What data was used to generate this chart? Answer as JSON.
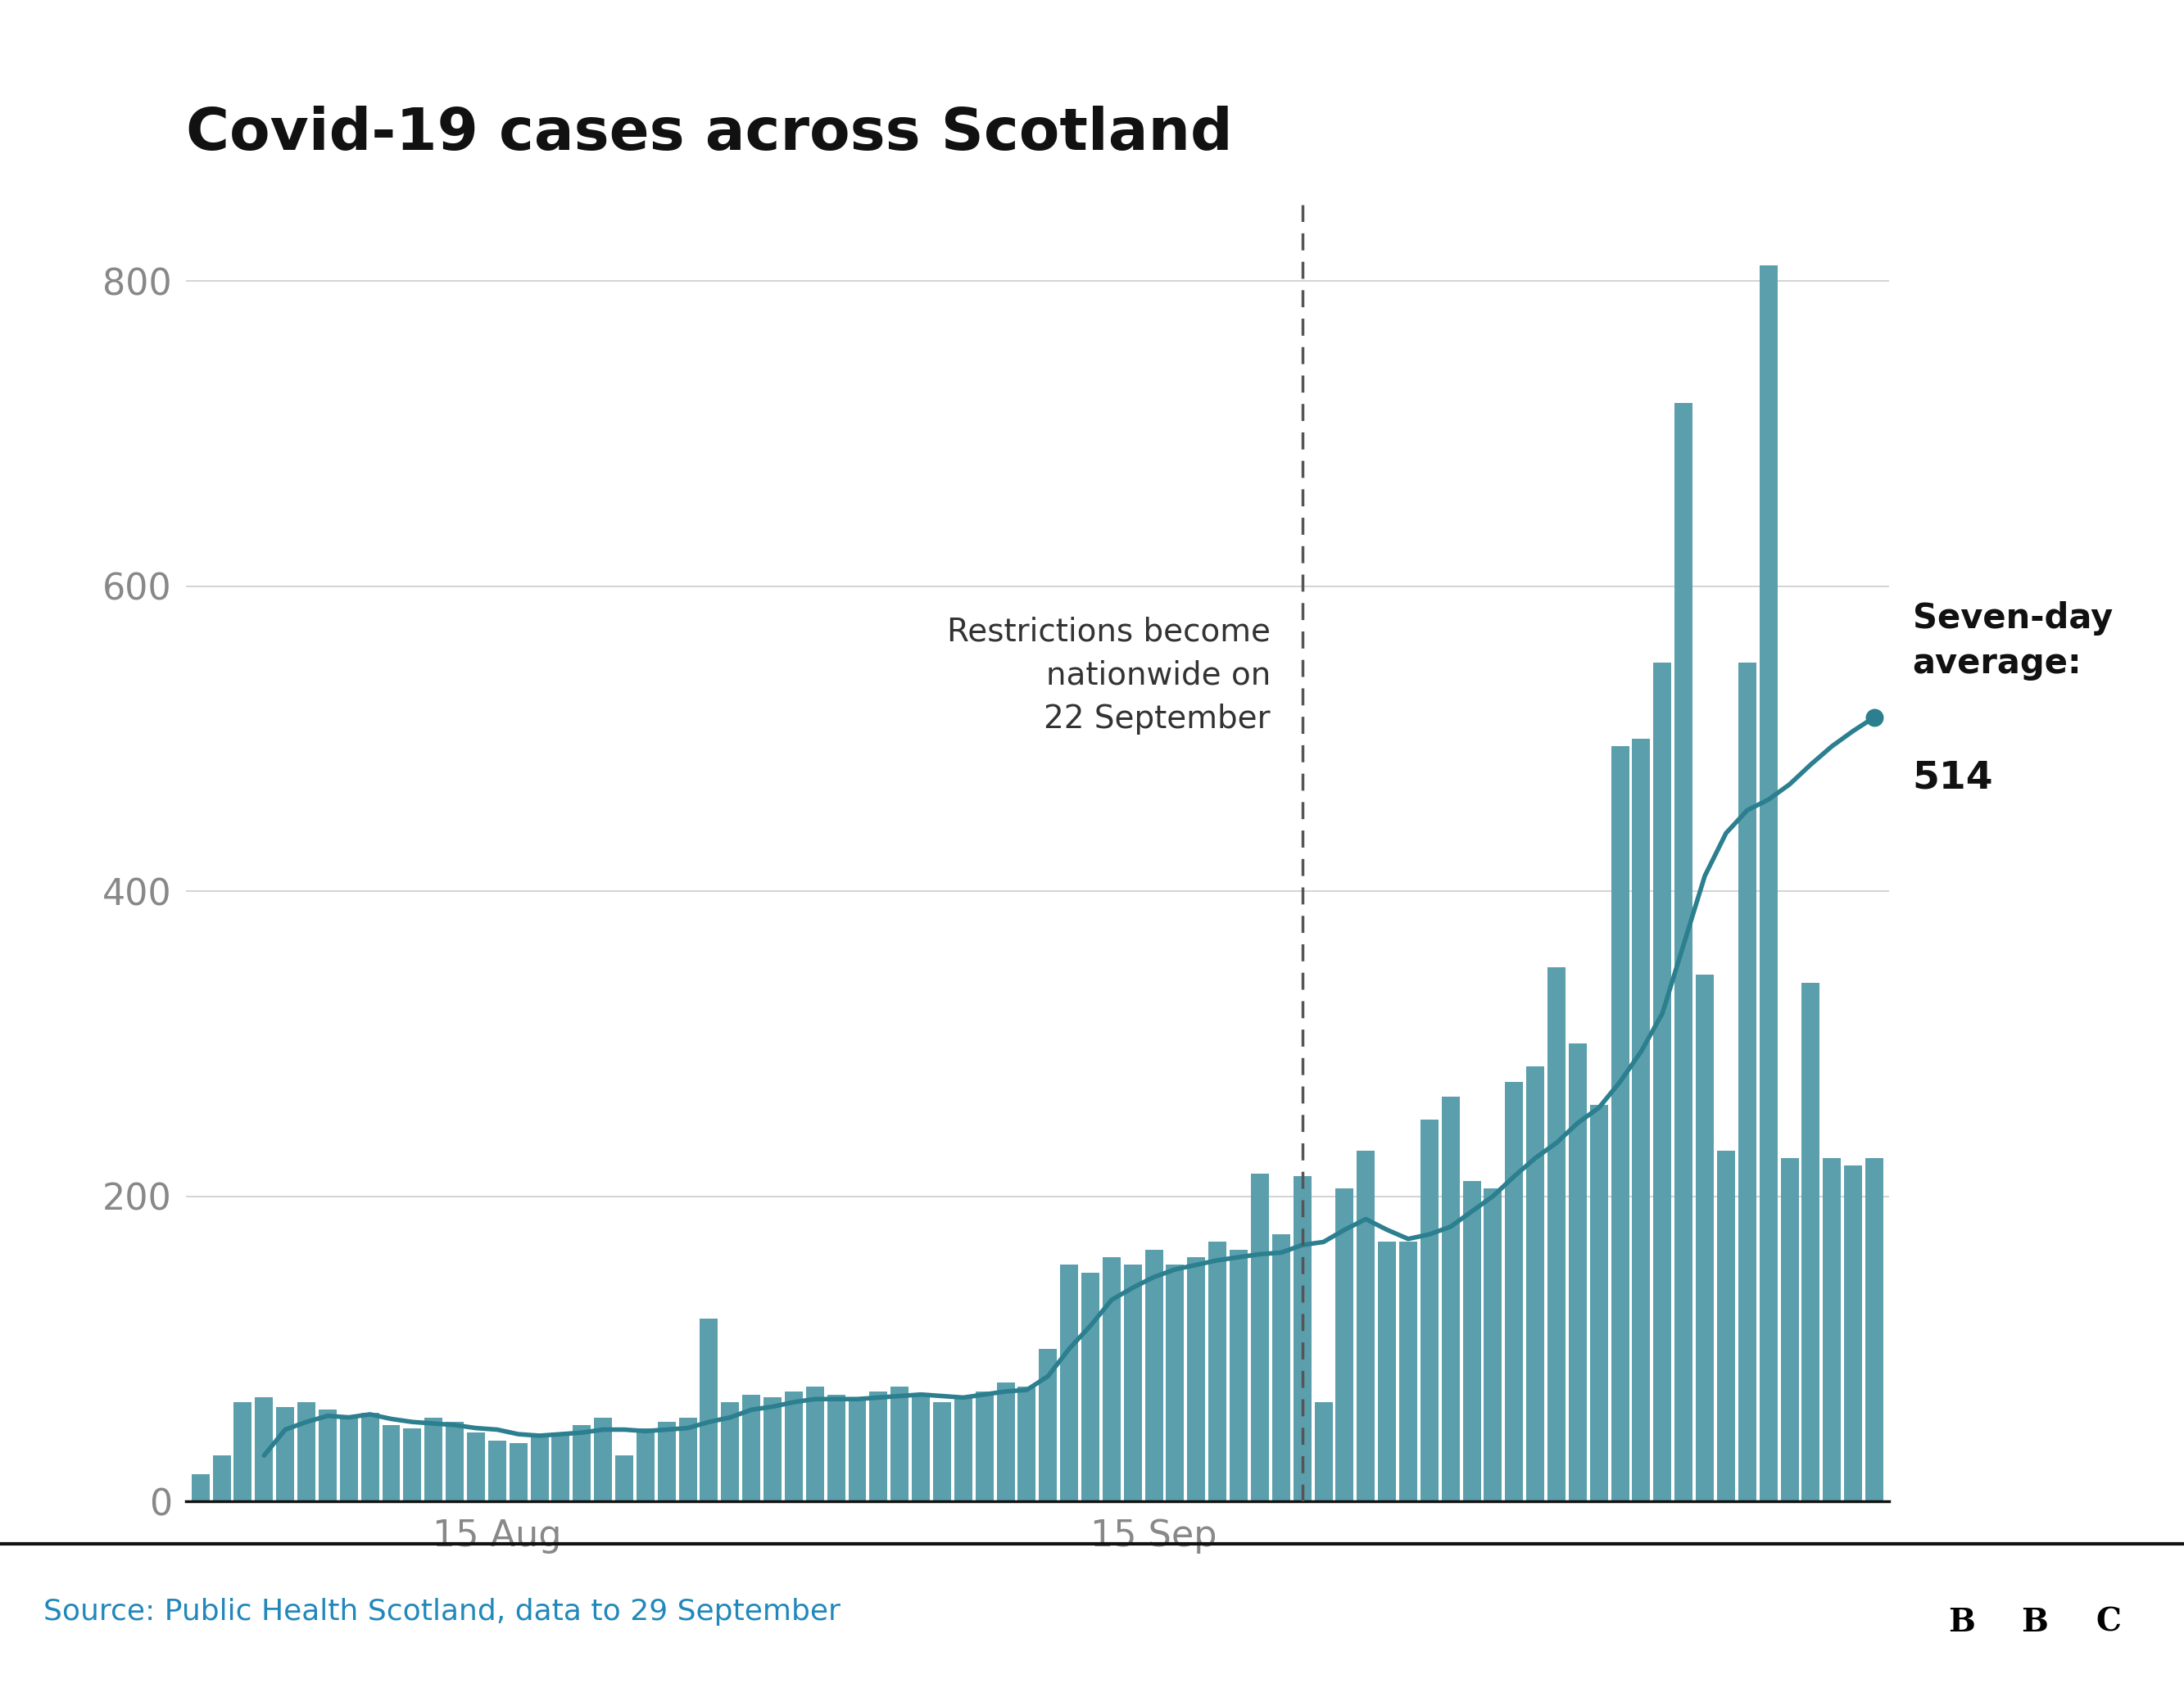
{
  "title": "Covid-19 cases across Scotland",
  "source_text": "Source: Public Health Scotland, data to 29 September",
  "annotation_text": "Restrictions become\nnationwide on\n22 September",
  "seven_day_label_bold": "Seven-day\naverage:",
  "seven_day_value": "514",
  "bar_color": "#5b9fad",
  "line_color": "#2b7f8f",
  "dot_color": "#2b7f8f",
  "dashed_line_color": "#555555",
  "background_color": "#ffffff",
  "grid_color": "#cccccc",
  "title_fontsize": 52,
  "source_fontsize": 26,
  "tick_fontsize": 32,
  "annotation_fontsize": 28,
  "seven_day_fontsize": 30,
  "ylim": [
    0,
    850
  ],
  "yticks": [
    0,
    200,
    400,
    600,
    800
  ],
  "restriction_date_index": 52,
  "daily_cases": [
    18,
    30,
    65,
    68,
    62,
    65,
    60,
    55,
    58,
    50,
    48,
    55,
    52,
    45,
    40,
    38,
    42,
    45,
    50,
    55,
    30,
    48,
    52,
    55,
    120,
    65,
    70,
    68,
    72,
    75,
    70,
    68,
    72,
    75,
    70,
    65,
    68,
    72,
    78,
    75,
    100,
    155,
    150,
    160,
    155,
    165,
    155,
    160,
    170,
    165,
    215,
    175,
    213,
    65,
    205,
    230,
    170,
    170,
    250,
    265,
    210,
    205,
    275,
    285,
    350,
    300,
    260,
    495,
    500,
    550,
    720,
    345,
    230,
    550,
    810,
    225,
    340,
    225,
    220,
    225
  ],
  "seven_day_avg": [
    null,
    null,
    null,
    30,
    47,
    52,
    56,
    55,
    57,
    54,
    52,
    51,
    50,
    48,
    47,
    44,
    43,
    44,
    45,
    47,
    47,
    46,
    47,
    48,
    52,
    55,
    60,
    62,
    65,
    67,
    67,
    67,
    68,
    69,
    70,
    69,
    68,
    70,
    72,
    73,
    82,
    100,
    115,
    132,
    140,
    147,
    152,
    155,
    158,
    160,
    162,
    163,
    168,
    170,
    178,
    185,
    178,
    172,
    175,
    180,
    190,
    200,
    213,
    225,
    235,
    248,
    258,
    275,
    295,
    320,
    365,
    410,
    438,
    453,
    460,
    470,
    483,
    495,
    505,
    514
  ],
  "xtick_positions": [
    14,
    45
  ],
  "xtick_labels": [
    "15 Aug",
    "15 Sep"
  ]
}
